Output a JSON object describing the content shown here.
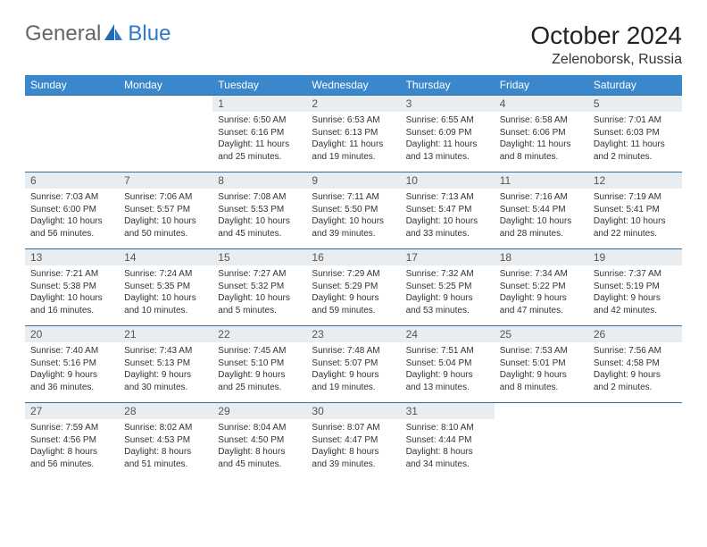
{
  "brand": {
    "part1": "General",
    "part2": "Blue"
  },
  "title": "October 2024",
  "location": "Zelenoborsk, Russia",
  "colors": {
    "header_bg": "#3a87cc",
    "header_text": "#ffffff",
    "daynum_bg": "#e9edf0",
    "row_border": "#2c6fa8",
    "logo_accent": "#2c7ac9"
  },
  "weekdays": [
    "Sunday",
    "Monday",
    "Tuesday",
    "Wednesday",
    "Thursday",
    "Friday",
    "Saturday"
  ],
  "weeks": [
    [
      null,
      null,
      {
        "n": "1",
        "sr": "Sunrise: 6:50 AM",
        "ss": "Sunset: 6:16 PM",
        "dl": "Daylight: 11 hours and 25 minutes."
      },
      {
        "n": "2",
        "sr": "Sunrise: 6:53 AM",
        "ss": "Sunset: 6:13 PM",
        "dl": "Daylight: 11 hours and 19 minutes."
      },
      {
        "n": "3",
        "sr": "Sunrise: 6:55 AM",
        "ss": "Sunset: 6:09 PM",
        "dl": "Daylight: 11 hours and 13 minutes."
      },
      {
        "n": "4",
        "sr": "Sunrise: 6:58 AM",
        "ss": "Sunset: 6:06 PM",
        "dl": "Daylight: 11 hours and 8 minutes."
      },
      {
        "n": "5",
        "sr": "Sunrise: 7:01 AM",
        "ss": "Sunset: 6:03 PM",
        "dl": "Daylight: 11 hours and 2 minutes."
      }
    ],
    [
      {
        "n": "6",
        "sr": "Sunrise: 7:03 AM",
        "ss": "Sunset: 6:00 PM",
        "dl": "Daylight: 10 hours and 56 minutes."
      },
      {
        "n": "7",
        "sr": "Sunrise: 7:06 AM",
        "ss": "Sunset: 5:57 PM",
        "dl": "Daylight: 10 hours and 50 minutes."
      },
      {
        "n": "8",
        "sr": "Sunrise: 7:08 AM",
        "ss": "Sunset: 5:53 PM",
        "dl": "Daylight: 10 hours and 45 minutes."
      },
      {
        "n": "9",
        "sr": "Sunrise: 7:11 AM",
        "ss": "Sunset: 5:50 PM",
        "dl": "Daylight: 10 hours and 39 minutes."
      },
      {
        "n": "10",
        "sr": "Sunrise: 7:13 AM",
        "ss": "Sunset: 5:47 PM",
        "dl": "Daylight: 10 hours and 33 minutes."
      },
      {
        "n": "11",
        "sr": "Sunrise: 7:16 AM",
        "ss": "Sunset: 5:44 PM",
        "dl": "Daylight: 10 hours and 28 minutes."
      },
      {
        "n": "12",
        "sr": "Sunrise: 7:19 AM",
        "ss": "Sunset: 5:41 PM",
        "dl": "Daylight: 10 hours and 22 minutes."
      }
    ],
    [
      {
        "n": "13",
        "sr": "Sunrise: 7:21 AM",
        "ss": "Sunset: 5:38 PM",
        "dl": "Daylight: 10 hours and 16 minutes."
      },
      {
        "n": "14",
        "sr": "Sunrise: 7:24 AM",
        "ss": "Sunset: 5:35 PM",
        "dl": "Daylight: 10 hours and 10 minutes."
      },
      {
        "n": "15",
        "sr": "Sunrise: 7:27 AM",
        "ss": "Sunset: 5:32 PM",
        "dl": "Daylight: 10 hours and 5 minutes."
      },
      {
        "n": "16",
        "sr": "Sunrise: 7:29 AM",
        "ss": "Sunset: 5:29 PM",
        "dl": "Daylight: 9 hours and 59 minutes."
      },
      {
        "n": "17",
        "sr": "Sunrise: 7:32 AM",
        "ss": "Sunset: 5:25 PM",
        "dl": "Daylight: 9 hours and 53 minutes."
      },
      {
        "n": "18",
        "sr": "Sunrise: 7:34 AM",
        "ss": "Sunset: 5:22 PM",
        "dl": "Daylight: 9 hours and 47 minutes."
      },
      {
        "n": "19",
        "sr": "Sunrise: 7:37 AM",
        "ss": "Sunset: 5:19 PM",
        "dl": "Daylight: 9 hours and 42 minutes."
      }
    ],
    [
      {
        "n": "20",
        "sr": "Sunrise: 7:40 AM",
        "ss": "Sunset: 5:16 PM",
        "dl": "Daylight: 9 hours and 36 minutes."
      },
      {
        "n": "21",
        "sr": "Sunrise: 7:43 AM",
        "ss": "Sunset: 5:13 PM",
        "dl": "Daylight: 9 hours and 30 minutes."
      },
      {
        "n": "22",
        "sr": "Sunrise: 7:45 AM",
        "ss": "Sunset: 5:10 PM",
        "dl": "Daylight: 9 hours and 25 minutes."
      },
      {
        "n": "23",
        "sr": "Sunrise: 7:48 AM",
        "ss": "Sunset: 5:07 PM",
        "dl": "Daylight: 9 hours and 19 minutes."
      },
      {
        "n": "24",
        "sr": "Sunrise: 7:51 AM",
        "ss": "Sunset: 5:04 PM",
        "dl": "Daylight: 9 hours and 13 minutes."
      },
      {
        "n": "25",
        "sr": "Sunrise: 7:53 AM",
        "ss": "Sunset: 5:01 PM",
        "dl": "Daylight: 9 hours and 8 minutes."
      },
      {
        "n": "26",
        "sr": "Sunrise: 7:56 AM",
        "ss": "Sunset: 4:58 PM",
        "dl": "Daylight: 9 hours and 2 minutes."
      }
    ],
    [
      {
        "n": "27",
        "sr": "Sunrise: 7:59 AM",
        "ss": "Sunset: 4:56 PM",
        "dl": "Daylight: 8 hours and 56 minutes."
      },
      {
        "n": "28",
        "sr": "Sunrise: 8:02 AM",
        "ss": "Sunset: 4:53 PM",
        "dl": "Daylight: 8 hours and 51 minutes."
      },
      {
        "n": "29",
        "sr": "Sunrise: 8:04 AM",
        "ss": "Sunset: 4:50 PM",
        "dl": "Daylight: 8 hours and 45 minutes."
      },
      {
        "n": "30",
        "sr": "Sunrise: 8:07 AM",
        "ss": "Sunset: 4:47 PM",
        "dl": "Daylight: 8 hours and 39 minutes."
      },
      {
        "n": "31",
        "sr": "Sunrise: 8:10 AM",
        "ss": "Sunset: 4:44 PM",
        "dl": "Daylight: 8 hours and 34 minutes."
      },
      null,
      null
    ]
  ]
}
